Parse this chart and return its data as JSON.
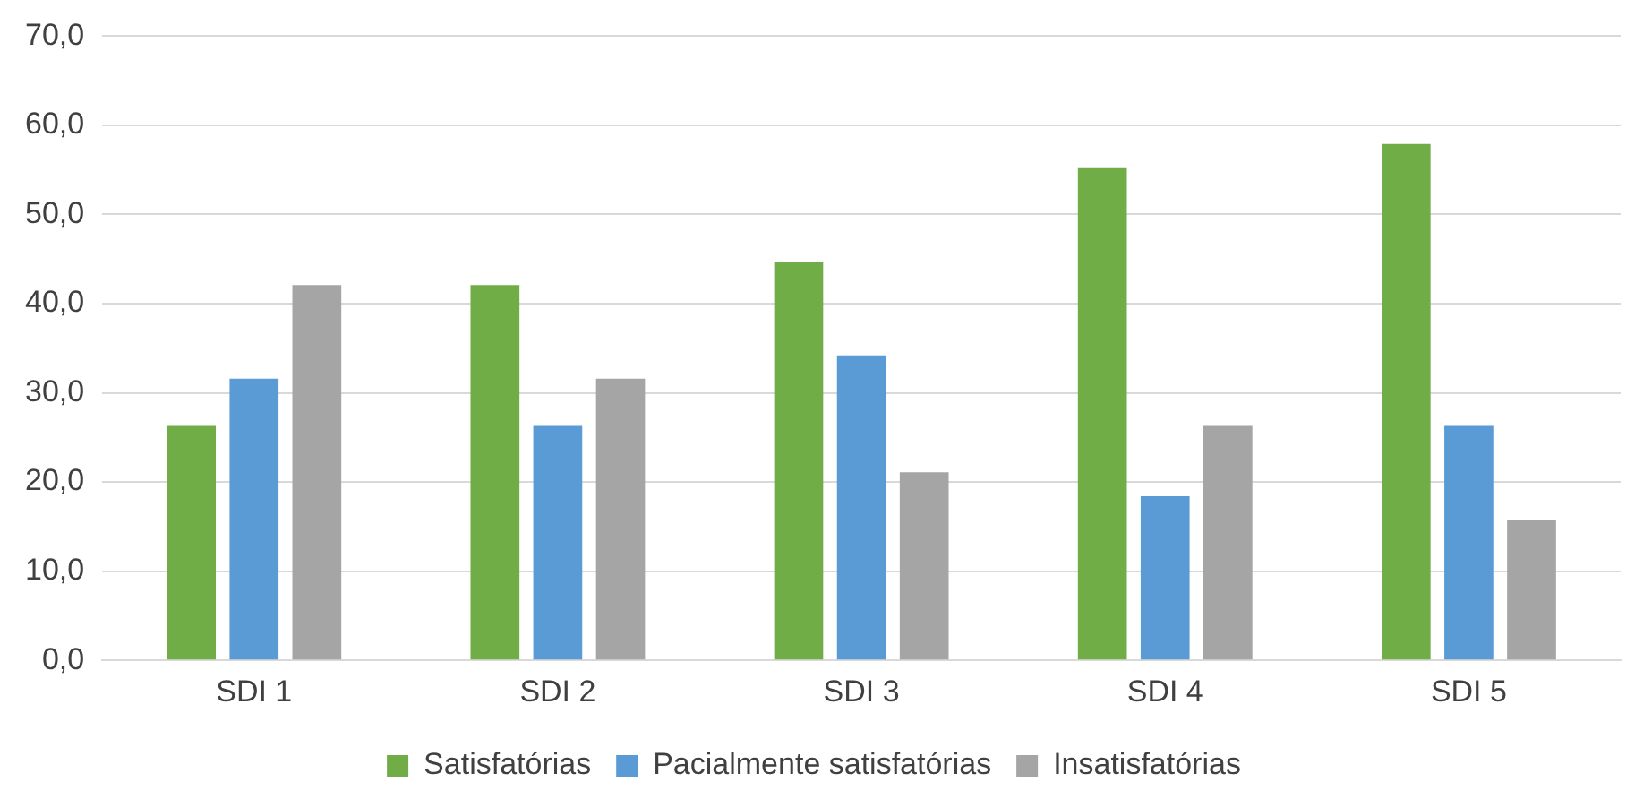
{
  "chart_data": {
    "type": "bar",
    "categories": [
      "SDI 1",
      "SDI 2",
      "SDI 3",
      "SDI 4",
      "SDI 5"
    ],
    "series": [
      {
        "name": "Satisfatórias",
        "color": "#70ad47",
        "values": [
          26.3,
          42.1,
          44.7,
          55.3,
          57.9
        ]
      },
      {
        "name": "Pacialmente satisfatórias",
        "color": "#5b9bd5",
        "values": [
          31.6,
          26.3,
          34.2,
          18.4,
          26.3
        ]
      },
      {
        "name": "Insatisfatórias",
        "color": "#a5a5a5",
        "values": [
          42.1,
          31.6,
          21.1,
          26.3,
          15.8
        ]
      }
    ],
    "ylim": [
      0,
      70
    ],
    "yticks": [
      {
        "value": 0,
        "label": "0,0"
      },
      {
        "value": 10,
        "label": "10,0"
      },
      {
        "value": 20,
        "label": "20,0"
      },
      {
        "value": 30,
        "label": "30,0"
      },
      {
        "value": 40,
        "label": "40,0"
      },
      {
        "value": 50,
        "label": "50,0"
      },
      {
        "value": 60,
        "label": "60,0"
      },
      {
        "value": 70,
        "label": "70,0"
      }
    ],
    "grid": "y",
    "legend": "bottom"
  }
}
